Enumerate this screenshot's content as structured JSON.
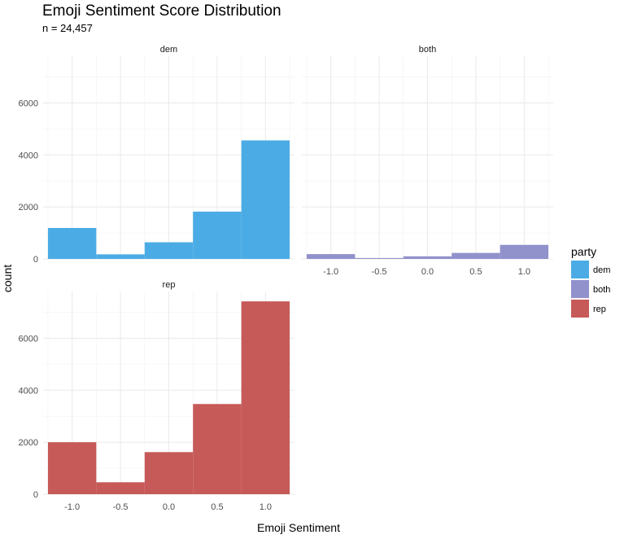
{
  "chart_data": {
    "type": "bar",
    "subtype": "faceted histogram",
    "title": "Emoji Sentiment Score Distribution",
    "subtitle": "n = 24,457",
    "xlabel": "Emoji Sentiment",
    "ylabel": "count",
    "x_ticks": [
      "-1.0",
      "-0.5",
      "0.0",
      "0.5",
      "1.0"
    ],
    "y_ticks": [
      "0",
      "2000",
      "4000",
      "6000"
    ],
    "xlim": [
      -1.3,
      1.3
    ],
    "ylim": [
      0,
      7800
    ],
    "bin_width": 0.5,
    "bin_centers": [
      -1.0,
      -0.5,
      0.0,
      0.5,
      1.0
    ],
    "grid": true,
    "legend": {
      "title": "party",
      "placement": "right",
      "entries": [
        {
          "label": "dem",
          "color": "#4BACE5"
        },
        {
          "label": "both",
          "color": "#9191CC"
        },
        {
          "label": "rep",
          "color": "#C65A59"
        }
      ]
    },
    "series": [
      {
        "name": "dem",
        "color": "#4BACE5",
        "values": [
          1190,
          175,
          640,
          1820,
          4560
        ]
      },
      {
        "name": "both",
        "color": "#9191CC",
        "values": [
          185,
          35,
          100,
          230,
          540
        ]
      },
      {
        "name": "rep",
        "color": "#C65A59",
        "values": [
          2000,
          460,
          1620,
          3470,
          7420
        ]
      }
    ]
  }
}
